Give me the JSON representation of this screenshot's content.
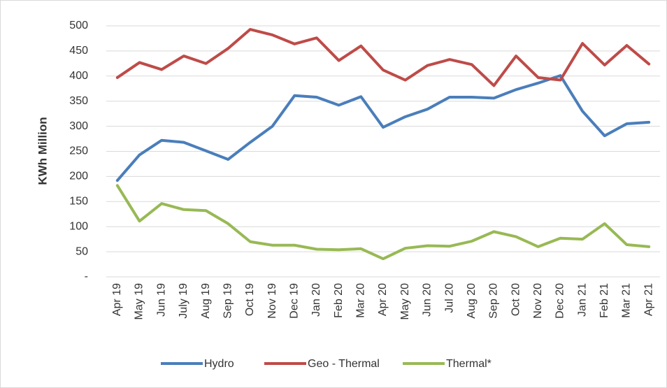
{
  "chart_data": {
    "type": "line",
    "y_label": "KWh Million",
    "categories": [
      "Apr 19",
      "May 19",
      "Jun 19",
      "July 19",
      "Aug 19",
      "Sep 19",
      "Oct 19",
      "Nov 19",
      "Dec 19",
      "Jan 20",
      "Feb 20",
      "Mar 20",
      "Apr 20",
      "May 20",
      "Jun 20",
      "Jul 20",
      "Aug 20",
      "Sep 20",
      "Oct 20",
      "Nov 20",
      "Dec 20",
      "Jan 21",
      "Feb 21",
      "Mar 21",
      "Apr 21"
    ],
    "series": [
      {
        "name": "Hydro",
        "color": "#4a7ebb",
        "values": [
          192,
          243,
          272,
          268,
          251,
          234,
          268,
          300,
          361,
          358,
          342,
          359,
          298,
          319,
          334,
          358,
          358,
          356,
          373,
          386,
          401,
          330,
          281,
          305,
          308
        ]
      },
      {
        "name": "Geo - Thermal",
        "color": "#be4b48",
        "values": [
          397,
          427,
          413,
          440,
          425,
          455,
          493,
          482,
          464,
          476,
          431,
          460,
          412,
          392,
          421,
          433,
          423,
          381,
          440,
          397,
          392,
          465,
          422,
          461,
          424
        ]
      },
      {
        "name": "Thermal*",
        "color": "#98b954",
        "values": [
          182,
          111,
          146,
          134,
          132,
          106,
          70,
          63,
          63,
          55,
          54,
          56,
          36,
          57,
          62,
          61,
          71,
          90,
          80,
          60,
          77,
          75,
          106,
          64,
          60
        ]
      }
    ],
    "ylim": [
      0,
      500
    ],
    "yticks": [
      {
        "value": 0,
        "label": "-"
      },
      50,
      100,
      150,
      200,
      250,
      300,
      350,
      400,
      450,
      500
    ],
    "grid": true,
    "legend": "bottom"
  }
}
